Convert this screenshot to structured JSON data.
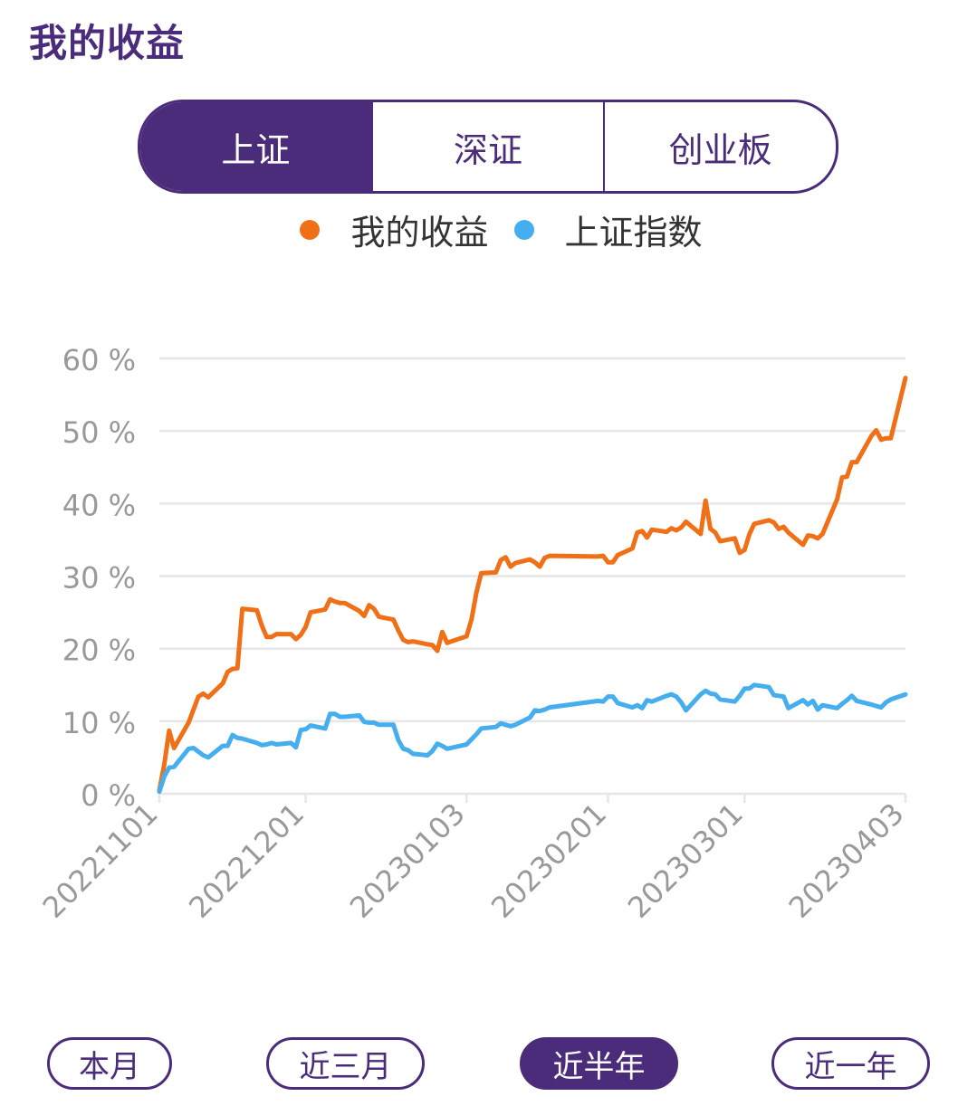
{
  "page_title": "我的收益",
  "tabs": [
    {
      "label": "上证",
      "active": true
    },
    {
      "label": "深证",
      "active": false
    },
    {
      "label": "创业板",
      "active": false
    }
  ],
  "colors": {
    "accent": "#4a2c7a",
    "my_return": "#f07018",
    "index": "#45aeee",
    "grid": "#e6e6e6",
    "axis_text": "#999999"
  },
  "range_buttons": [
    {
      "label": "本月",
      "active": false
    },
    {
      "label": "近三月",
      "active": false
    },
    {
      "label": "近半年",
      "active": true
    },
    {
      "label": "近一年",
      "active": false
    }
  ],
  "chart_data": {
    "type": "line",
    "legend_position": "top-center",
    "grid": true,
    "ylim": [
      0,
      60
    ],
    "y_ticks": [
      0,
      10,
      20,
      30,
      40,
      50,
      60
    ],
    "y_tick_suffix": " %",
    "x_ticks": [
      "20221101",
      "20221201",
      "20230103",
      "20230201",
      "20230301",
      "20230403"
    ],
    "series": [
      {
        "name": "我的收益",
        "color": "#f07018",
        "points": [
          [
            "20221101",
            0.5
          ],
          [
            "20221102",
            4
          ],
          [
            "20221103",
            8.7
          ],
          [
            "20221104",
            6.3
          ],
          [
            "20221107",
            9.8
          ],
          [
            "20221108",
            11.6
          ],
          [
            "20221109",
            13.4
          ],
          [
            "20221110",
            13.8
          ],
          [
            "20221111",
            13.3
          ],
          [
            "20221114",
            15.2
          ],
          [
            "20221115",
            16.8
          ],
          [
            "20221116",
            17.2
          ],
          [
            "20221117",
            17.3
          ],
          [
            "20221118",
            25.5
          ],
          [
            "20221121",
            25.3
          ],
          [
            "20221122",
            23.2
          ],
          [
            "20221123",
            21.6
          ],
          [
            "20221124",
            21.6
          ],
          [
            "20221125",
            22.0
          ],
          [
            "20221128",
            22.0
          ],
          [
            "20221129",
            21.3
          ],
          [
            "20221130",
            21.9
          ],
          [
            "20221201",
            23.0
          ],
          [
            "20221202",
            25.0
          ],
          [
            "20221205",
            25.4
          ],
          [
            "20221206",
            26.8
          ],
          [
            "20221207",
            26.5
          ],
          [
            "20221208",
            26.3
          ],
          [
            "20221209",
            26.3
          ],
          [
            "20221212",
            25.2
          ],
          [
            "20221213",
            24.5
          ],
          [
            "20221214",
            26.0
          ],
          [
            "20221215",
            25.5
          ],
          [
            "20221216",
            24.4
          ],
          [
            "20221219",
            24.0
          ],
          [
            "20221220",
            22.5
          ],
          [
            "20221221",
            21.2
          ],
          [
            "20221222",
            20.9
          ],
          [
            "20221223",
            21.0
          ],
          [
            "20221226",
            20.6
          ],
          [
            "20221227",
            20.5
          ],
          [
            "20221228",
            19.7
          ],
          [
            "20221229",
            22.3
          ],
          [
            "20221230",
            20.8
          ],
          [
            "20230103",
            21.7
          ],
          [
            "20230104",
            24.0
          ],
          [
            "20230105",
            27.7
          ],
          [
            "20230106",
            30.4
          ],
          [
            "20230109",
            30.5
          ],
          [
            "20230110",
            32.2
          ],
          [
            "20230111",
            32.6
          ],
          [
            "20230112",
            31.3
          ],
          [
            "20230113",
            31.8
          ],
          [
            "20230116",
            32.3
          ],
          [
            "20230117",
            31.9
          ],
          [
            "20230118",
            31.3
          ],
          [
            "20230119",
            32.5
          ],
          [
            "20230120",
            32.8
          ],
          [
            "20230130",
            32.7
          ],
          [
            "20230131",
            32.8
          ],
          [
            "20230201",
            31.9
          ],
          [
            "20230202",
            31.9
          ],
          [
            "20230203",
            32.9
          ],
          [
            "20230206",
            33.8
          ],
          [
            "20230207",
            36.0
          ],
          [
            "20230208",
            36.2
          ],
          [
            "20230209",
            35.3
          ],
          [
            "20230210",
            36.4
          ],
          [
            "20230213",
            36.1
          ],
          [
            "20230214",
            36.6
          ],
          [
            "20230215",
            36.3
          ],
          [
            "20230216",
            36.7
          ],
          [
            "20230217",
            37.5
          ],
          [
            "20230220",
            35.8
          ],
          [
            "20230221",
            40.4
          ],
          [
            "20230222",
            36.5
          ],
          [
            "20230223",
            36.0
          ],
          [
            "20230224",
            34.8
          ],
          [
            "20230227",
            35.2
          ],
          [
            "20230228",
            33.2
          ],
          [
            "20230301",
            33.6
          ],
          [
            "20230302",
            35.8
          ],
          [
            "20230303",
            37.2
          ],
          [
            "20230306",
            37.7
          ],
          [
            "20230307",
            37.4
          ],
          [
            "20230308",
            36.5
          ],
          [
            "20230309",
            36.8
          ],
          [
            "20230310",
            36.0
          ],
          [
            "20230313",
            34.3
          ],
          [
            "20230314",
            35.6
          ],
          [
            "20230315",
            35.5
          ],
          [
            "20230316",
            35.2
          ],
          [
            "20230317",
            35.8
          ],
          [
            "20230320",
            40.6
          ],
          [
            "20230321",
            43.6
          ],
          [
            "20230322",
            43.7
          ],
          [
            "20230323",
            45.7
          ],
          [
            "20230324",
            45.7
          ],
          [
            "20230327",
            49.3
          ],
          [
            "20230328",
            50.1
          ],
          [
            "20230329",
            48.8
          ],
          [
            "20230330",
            49.0
          ],
          [
            "20230331",
            49.0
          ],
          [
            "20230403",
            57.3
          ]
        ]
      },
      {
        "name": "上证指数",
        "color": "#45aeee",
        "points": [
          [
            "20221101",
            0.3
          ],
          [
            "20221102",
            2.4
          ],
          [
            "20221103",
            3.6
          ],
          [
            "20221104",
            3.7
          ],
          [
            "20221107",
            6.2
          ],
          [
            "20221108",
            6.3
          ],
          [
            "20221109",
            5.8
          ],
          [
            "20221110",
            5.3
          ],
          [
            "20221111",
            5.0
          ],
          [
            "20221114",
            6.6
          ],
          [
            "20221115",
            6.6
          ],
          [
            "20221116",
            8.1
          ],
          [
            "20221117",
            7.7
          ],
          [
            "20221118",
            7.6
          ],
          [
            "20221121",
            7.0
          ],
          [
            "20221122",
            6.7
          ],
          [
            "20221123",
            6.8
          ],
          [
            "20221124",
            7.0
          ],
          [
            "20221125",
            6.8
          ],
          [
            "20221128",
            7.0
          ],
          [
            "20221129",
            6.4
          ],
          [
            "20221130",
            8.8
          ],
          [
            "20221201",
            8.9
          ],
          [
            "20221202",
            9.4
          ],
          [
            "20221205",
            9.0
          ],
          [
            "20221206",
            11.0
          ],
          [
            "20221207",
            11.0
          ],
          [
            "20221208",
            10.6
          ],
          [
            "20221209",
            10.6
          ],
          [
            "20221212",
            10.8
          ],
          [
            "20221213",
            9.9
          ],
          [
            "20221214",
            9.8
          ],
          [
            "20221215",
            9.8
          ],
          [
            "20221216",
            9.5
          ],
          [
            "20221219",
            9.5
          ],
          [
            "20221220",
            7.4
          ],
          [
            "20221221",
            6.2
          ],
          [
            "20221222",
            6.0
          ],
          [
            "20221223",
            5.5
          ],
          [
            "20221226",
            5.3
          ],
          [
            "20221227",
            5.9
          ],
          [
            "20221228",
            6.9
          ],
          [
            "20221229",
            6.6
          ],
          [
            "20221230",
            6.2
          ],
          [
            "20230103",
            6.8
          ],
          [
            "20230104",
            7.5
          ],
          [
            "20230105",
            8.2
          ],
          [
            "20230106",
            9.0
          ],
          [
            "20230109",
            9.2
          ],
          [
            "20230110",
            9.7
          ],
          [
            "20230111",
            9.5
          ],
          [
            "20230112",
            9.3
          ],
          [
            "20230113",
            9.5
          ],
          [
            "20230116",
            10.5
          ],
          [
            "20230117",
            11.5
          ],
          [
            "20230118",
            11.4
          ],
          [
            "20230119",
            11.6
          ],
          [
            "20230120",
            11.9
          ],
          [
            "20230130",
            12.8
          ],
          [
            "20230131",
            12.7
          ],
          [
            "20230201",
            13.4
          ],
          [
            "20230202",
            13.4
          ],
          [
            "20230203",
            12.5
          ],
          [
            "20230206",
            11.9
          ],
          [
            "20230207",
            12.2
          ],
          [
            "20230208",
            11.8
          ],
          [
            "20230209",
            12.9
          ],
          [
            "20230210",
            12.7
          ],
          [
            "20230213",
            13.5
          ],
          [
            "20230214",
            13.7
          ],
          [
            "20230215",
            13.4
          ],
          [
            "20230216",
            12.6
          ],
          [
            "20230217",
            11.5
          ],
          [
            "20230220",
            13.7
          ],
          [
            "20230221",
            14.2
          ],
          [
            "20230222",
            13.8
          ],
          [
            "20230223",
            13.7
          ],
          [
            "20230224",
            13.0
          ],
          [
            "20230227",
            12.7
          ],
          [
            "20230228",
            13.5
          ],
          [
            "20230301",
            14.5
          ],
          [
            "20230302",
            14.5
          ],
          [
            "20230303",
            15.0
          ],
          [
            "20230306",
            14.7
          ],
          [
            "20230307",
            13.6
          ],
          [
            "20230308",
            13.5
          ],
          [
            "20230309",
            13.4
          ],
          [
            "20230310",
            11.8
          ],
          [
            "20230313",
            12.9
          ],
          [
            "20230314",
            12.3
          ],
          [
            "20230315",
            12.8
          ],
          [
            "20230316",
            11.6
          ],
          [
            "20230317",
            12.2
          ],
          [
            "20230320",
            11.8
          ],
          [
            "20230321",
            12.4
          ],
          [
            "20230322",
            12.9
          ],
          [
            "20230323",
            13.5
          ],
          [
            "20230324",
            12.8
          ],
          [
            "20230327",
            12.3
          ],
          [
            "20230328",
            12.1
          ],
          [
            "20230329",
            11.9
          ],
          [
            "20230330",
            12.6
          ],
          [
            "20230331",
            13.0
          ],
          [
            "20230403",
            13.7
          ]
        ]
      }
    ]
  }
}
